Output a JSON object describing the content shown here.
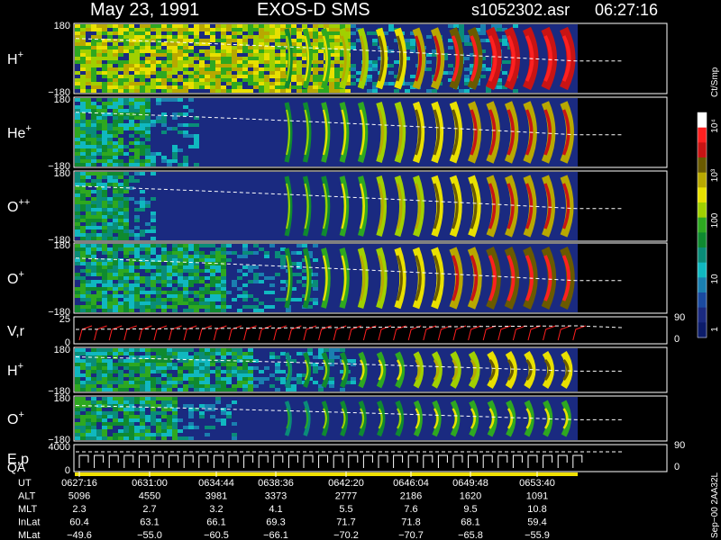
{
  "header": {
    "date": "May 23, 1991",
    "mission": "EXOS-D SMS",
    "file": "s1052302.asr",
    "time": "06:27:16"
  },
  "colorbar": {
    "unit": "Ct/Smp",
    "ticks": [
      "10⁴",
      "10³",
      "100",
      "10",
      "1"
    ],
    "colors": [
      "#ffffff",
      "#ff2020",
      "#c81414",
      "#6a5a00",
      "#b8a800",
      "#e8e000",
      "#a0d000",
      "#2ea820",
      "#0f8a30",
      "#0a8c78",
      "#10b8c0",
      "#1a7fb0",
      "#1a4aa0",
      "#1a2a80",
      "#0c1c6a"
    ]
  },
  "panels": [
    {
      "label": "H",
      "sup": "+",
      "ymax": "180",
      "ymin": "−180",
      "density": 1.0,
      "bgFill": 0.55
    },
    {
      "label": "He",
      "sup": "+",
      "ymax": "180",
      "ymin": "−180",
      "density": 0.8,
      "bgFill": 0.15
    },
    {
      "label": "O",
      "sup": "++",
      "ymax": "180",
      "ymin": "−180",
      "density": 0.75,
      "bgFill": 0.1
    },
    {
      "label": "O",
      "sup": "+",
      "ymax": "180",
      "ymin": "−180",
      "density": 0.9,
      "bgFill": 0.3
    },
    {
      "label": "V,r",
      "sup": "",
      "ymax": "25",
      "ymin": "0",
      "rmax": "90",
      "rmin": "0"
    },
    {
      "label": "H",
      "sup": "+",
      "ymax": "180",
      "ymin": "−180",
      "density": 0.6,
      "bgFill": 0.35
    },
    {
      "label": "O",
      "sup": "+",
      "ymax": "180",
      "ymin": "−180",
      "density": 0.4,
      "bgFill": 0.2
    },
    {
      "label": "E,p",
      "label2": "QA",
      "ymax": "4000",
      "ymin": "0",
      "rmax": "90",
      "rmin": "0"
    }
  ],
  "footer": {
    "rows": [
      {
        "name": "UT",
        "values": [
          "0627:16",
          "0631:00",
          "0634:44",
          "0638:36",
          "0642:20",
          "0646:04",
          "0649:48",
          "0653:40"
        ]
      },
      {
        "name": "ALT",
        "values": [
          "5096",
          "4550",
          "3981",
          "3373",
          "2777",
          "2186",
          "1620",
          "1091"
        ]
      },
      {
        "name": "MLT",
        "values": [
          "2.3",
          "2.7",
          "3.2",
          "4.1",
          "5.5",
          "7.6",
          "9.5",
          "10.8"
        ]
      },
      {
        "name": "InLat",
        "values": [
          "60.4",
          "63.1",
          "66.1",
          "69.3",
          "71.7",
          "71.8",
          "68.1",
          "59.4"
        ]
      },
      {
        "name": "MLat",
        "values": [
          "−49.6",
          "−55.0",
          "−60.5",
          "−66.1",
          "−70.2",
          "−70.7",
          "−65.8",
          "−55.9"
        ]
      }
    ],
    "side_note": "Sep−00  2AA32L"
  },
  "chart_data": {
    "type": "heatmap",
    "title": "May 23, 1991   EXOS-D SMS",
    "xlabel": "UT",
    "x": [
      "0627:16",
      "0631:00",
      "0634:44",
      "0638:36",
      "0642:20",
      "0646:04",
      "0649:48",
      "0653:40"
    ],
    "series": [
      {
        "name": "H+",
        "yrange": [
          -180,
          180
        ]
      },
      {
        "name": "He+",
        "yrange": [
          -180,
          180
        ]
      },
      {
        "name": "O++",
        "yrange": [
          -180,
          180
        ]
      },
      {
        "name": "O+",
        "yrange": [
          -180,
          180
        ]
      },
      {
        "name": "V,r",
        "yrange": [
          0,
          25
        ],
        "right_range": [
          0,
          90
        ]
      },
      {
        "name": "H+",
        "yrange": [
          -180,
          180
        ]
      },
      {
        "name": "O+",
        "yrange": [
          -180,
          180
        ]
      },
      {
        "name": "E,p / QA",
        "yrange": [
          0,
          4000
        ],
        "right_range": [
          0,
          90
        ]
      }
    ],
    "color_scale": {
      "unit": "Ct/Smp",
      "range": [
        1,
        10000
      ],
      "log": true
    }
  }
}
